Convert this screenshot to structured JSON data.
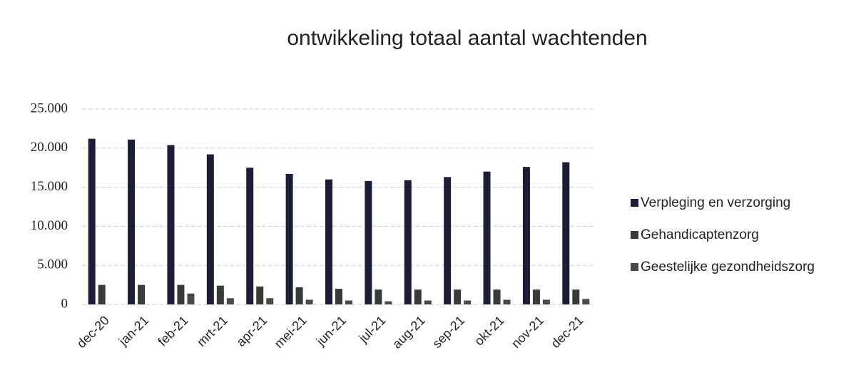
{
  "chart_data": {
    "type": "bar",
    "title": "ontwikkeling totaal aantal wachtenden",
    "categories": [
      "dec-20",
      "jan-21",
      "feb-21",
      "mrt-21",
      "apr-21",
      "mei-21",
      "jun-21",
      "jul-21",
      "aug-21",
      "sep-21",
      "okt-21",
      "nov-21",
      "dec-21"
    ],
    "series": [
      {
        "name": "Verpleging en verzorging",
        "color": "#1d1d38",
        "values": [
          21200,
          21100,
          20400,
          19200,
          17500,
          16700,
          16000,
          15800,
          15900,
          16300,
          17000,
          17600,
          18200
        ]
      },
      {
        "name": "Gehandicaptenzorg",
        "color": "#3a3a3a",
        "values": [
          2500,
          2500,
          2500,
          2400,
          2300,
          2200,
          2000,
          1900,
          1900,
          1900,
          1900,
          1900,
          1900
        ]
      },
      {
        "name": "Geestelijke gezondheidszorg",
        "color": "#4a4a4a",
        "values": [
          null,
          null,
          1400,
          800,
          800,
          600,
          500,
          400,
          500,
          500,
          600,
          600,
          700
        ]
      }
    ],
    "ylim": [
      0,
      25000
    ],
    "yticks": [
      0,
      {
        "value": 5000,
        "label": "5.000"
      },
      {
        "value": 10000,
        "label": "10.000"
      },
      {
        "value": 15000,
        "label": "15.000"
      },
      {
        "value": 20000,
        "label": "20.000"
      },
      {
        "value": 25000,
        "label": "25.000"
      }
    ],
    "grid": true,
    "legend": "right"
  }
}
